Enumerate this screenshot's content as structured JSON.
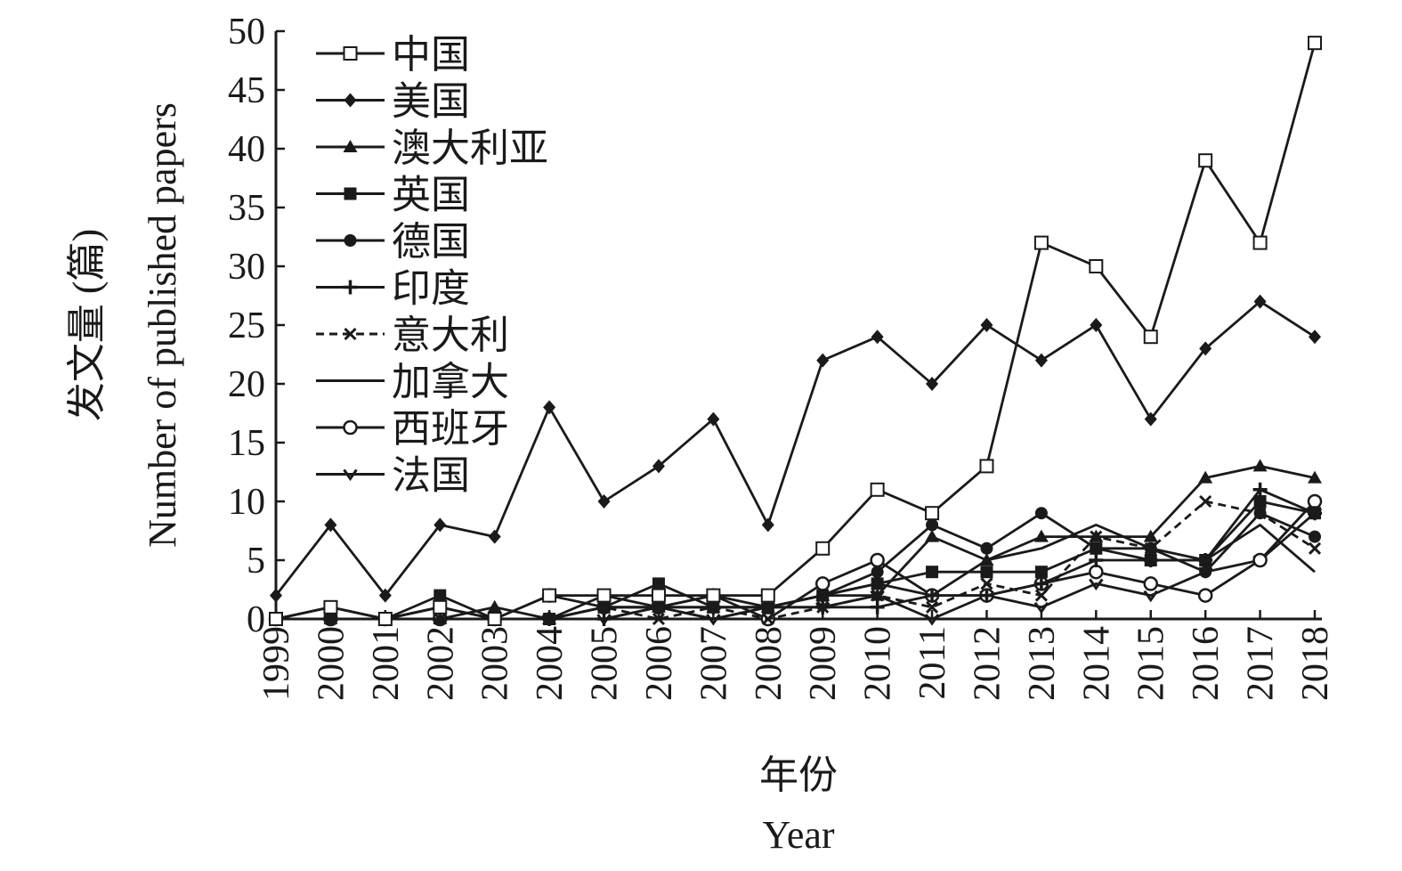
{
  "chart_data": {
    "type": "line",
    "title": "",
    "xlabel_cn": "年份",
    "xlabel_en": "Year",
    "ylabel_cn": "发文量 (篇)",
    "ylabel_en": "Number of published papers",
    "ylim": [
      0,
      50
    ],
    "yticks": [
      0,
      5,
      10,
      15,
      20,
      25,
      30,
      35,
      40,
      45,
      50
    ],
    "categories": [
      "1999",
      "2000",
      "2001",
      "2002",
      "2003",
      "2004",
      "2005",
      "2006",
      "2007",
      "2008",
      "2009",
      "2010",
      "2011",
      "2012",
      "2013",
      "2014",
      "2015",
      "2016",
      "2017",
      "2018"
    ],
    "legend_position": "top-left",
    "grid": false,
    "series": [
      {
        "name": "中国",
        "marker": "open-square",
        "dash": "solid",
        "values": [
          0,
          1,
          0,
          1,
          0,
          2,
          2,
          2,
          2,
          2,
          6,
          11,
          9,
          13,
          32,
          30,
          24,
          39,
          32,
          49
        ]
      },
      {
        "name": "美国",
        "marker": "diamond",
        "dash": "solid",
        "values": [
          2,
          8,
          2,
          8,
          7,
          18,
          10,
          13,
          17,
          8,
          22,
          24,
          20,
          25,
          22,
          25,
          17,
          23,
          27,
          24
        ]
      },
      {
        "name": "澳大利亚",
        "marker": "triangle",
        "dash": "solid",
        "values": [
          0,
          0,
          0,
          0,
          1,
          0,
          2,
          1,
          1,
          1,
          2,
          2,
          7,
          5,
          7,
          7,
          7,
          12,
          13,
          12
        ]
      },
      {
        "name": "英国",
        "marker": "square",
        "dash": "solid",
        "values": [
          0,
          1,
          0,
          2,
          0,
          0,
          1,
          3,
          1,
          1,
          2,
          3,
          4,
          4,
          4,
          6,
          5,
          5,
          10,
          9
        ]
      },
      {
        "name": "德国",
        "marker": "circle",
        "dash": "solid",
        "values": [
          0,
          0,
          0,
          1,
          0,
          0,
          1,
          1,
          2,
          1,
          2,
          4,
          8,
          6,
          9,
          6,
          6,
          4,
          9,
          7
        ]
      },
      {
        "name": "印度",
        "marker": "plus",
        "dash": "solid",
        "values": [
          0,
          0,
          0,
          0,
          0,
          0,
          0,
          1,
          1,
          1,
          1,
          1,
          2,
          2,
          3,
          5,
          5,
          5,
          11,
          9
        ]
      },
      {
        "name": "意大利",
        "marker": "x",
        "dash": "dashed",
        "values": [
          0,
          0,
          0,
          0,
          0,
          0,
          1,
          0,
          1,
          0,
          1,
          2,
          1,
          3,
          2,
          7,
          6,
          10,
          9,
          6
        ]
      },
      {
        "name": "加拿大",
        "marker": "none",
        "dash": "solid",
        "values": [
          0,
          0,
          0,
          1,
          0,
          0,
          1,
          1,
          0,
          1,
          2,
          3,
          2,
          5,
          6,
          8,
          6,
          5,
          8,
          4
        ]
      },
      {
        "name": "西班牙",
        "marker": "open-circle",
        "dash": "solid",
        "values": [
          0,
          0,
          0,
          0,
          0,
          2,
          1,
          1,
          2,
          0,
          3,
          5,
          2,
          2,
          3,
          4,
          3,
          2,
          5,
          10
        ]
      },
      {
        "name": "法国",
        "marker": "chevron",
        "dash": "solid",
        "values": [
          0,
          0,
          0,
          0,
          0,
          0,
          0,
          1,
          0,
          1,
          1,
          2,
          0,
          2,
          1,
          3,
          2,
          4,
          5,
          9
        ]
      }
    ]
  }
}
